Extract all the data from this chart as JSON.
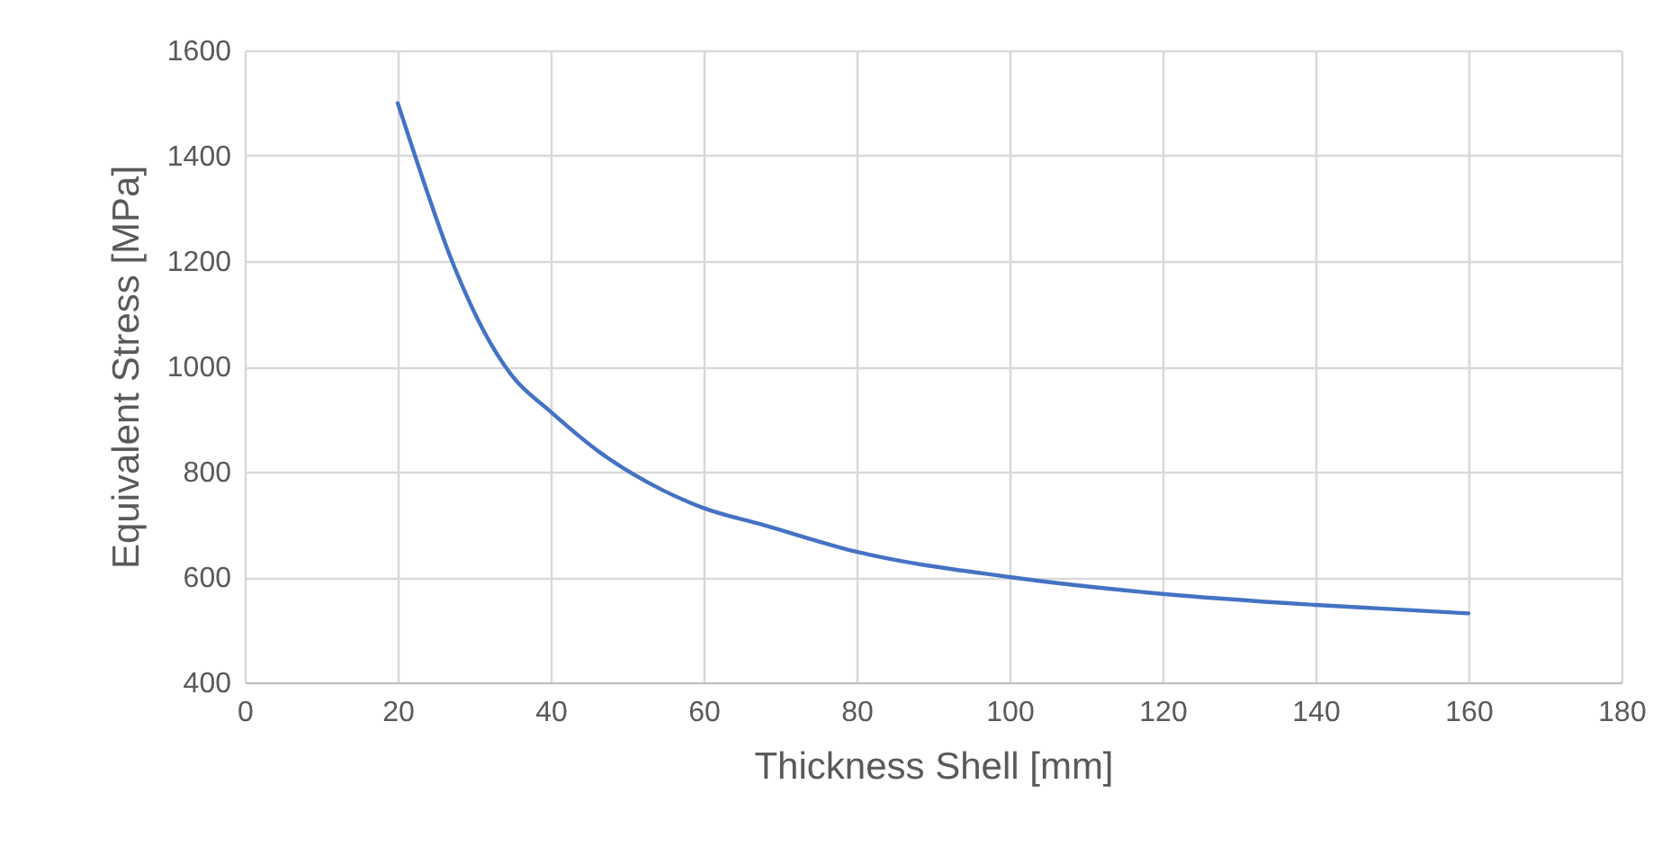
{
  "chart_data": {
    "type": "line",
    "xlabel": "Thickness Shell [mm]",
    "ylabel": "Equivalent Stress [MPa]",
    "series": [
      {
        "color": "#4472c4",
        "x": [
          20,
          22.4,
          27.1,
          31,
          34.9,
          40,
          46.7,
          54.5,
          60,
          67.8,
          80,
          100,
          120,
          140,
          160
        ],
        "values": [
          1500,
          1394,
          1200,
          1074,
          983,
          914,
          834,
          766,
          731,
          699,
          648,
          600,
          568,
          547,
          531
        ]
      }
    ],
    "xlim": [
      0,
      180
    ],
    "xticks": [
      0,
      20,
      40,
      60,
      80,
      100,
      120,
      140,
      160,
      180
    ],
    "ylim": [
      400,
      1600
    ],
    "yticks": [
      400,
      600,
      800,
      1000,
      1200,
      1400,
      1600
    ],
    "grid": true,
    "marker": "none",
    "line_style": "solid"
  }
}
